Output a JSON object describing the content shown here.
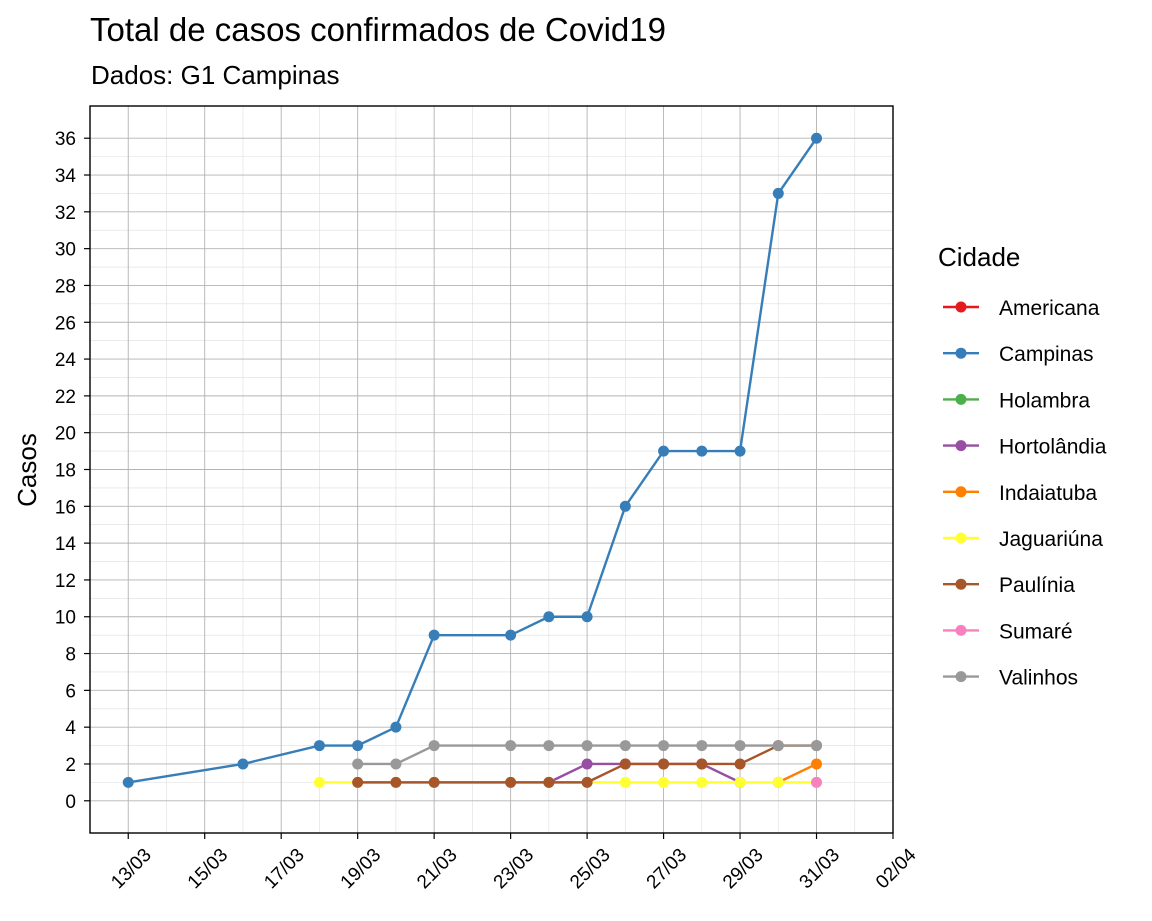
{
  "chart_data": {
    "type": "line",
    "title": "Total de casos confirmados de Covid19",
    "subtitle": "Dados: G1 Campinas",
    "xlabel": "",
    "ylabel": "Casos",
    "x_tick_labels": [
      "13/03",
      "15/03",
      "17/03",
      "19/03",
      "21/03",
      "23/03",
      "25/03",
      "27/03",
      "29/03",
      "31/03",
      "02/04"
    ],
    "y_ticks": [
      0,
      2,
      4,
      6,
      8,
      10,
      12,
      14,
      16,
      18,
      20,
      22,
      24,
      26,
      28,
      30,
      32,
      34,
      36
    ],
    "xlim": [
      "2020-03-12",
      "2020-04-02"
    ],
    "ylim": [
      -1.75,
      37.75
    ],
    "grid": true,
    "legend_title": "Cidade",
    "legend_position": "right",
    "series": [
      {
        "name": "Americana",
        "color": "#E41A1C",
        "points": []
      },
      {
        "name": "Campinas",
        "color": "#377EB8",
        "points": [
          [
            "13/03",
            1
          ],
          [
            "16/03",
            2
          ],
          [
            "18/03",
            3
          ],
          [
            "19/03",
            3
          ],
          [
            "20/03",
            4
          ],
          [
            "21/03",
            9
          ],
          [
            "23/03",
            9
          ],
          [
            "24/03",
            10
          ],
          [
            "25/03",
            10
          ],
          [
            "26/03",
            16
          ],
          [
            "27/03",
            19
          ],
          [
            "28/03",
            19
          ],
          [
            "29/03",
            19
          ],
          [
            "30/03",
            33
          ],
          [
            "31/03",
            36
          ]
        ]
      },
      {
        "name": "Holambra",
        "color": "#4DAF4A",
        "points": []
      },
      {
        "name": "Hortolândia",
        "color": "#984EA3",
        "points": [
          [
            "24/03",
            1
          ],
          [
            "25/03",
            2
          ],
          [
            "26/03",
            2
          ],
          [
            "27/03",
            2
          ],
          [
            "28/03",
            2
          ],
          [
            "29/03",
            1
          ]
        ]
      },
      {
        "name": "Indaiatuba",
        "color": "#FF7F00",
        "points": [
          [
            "30/03",
            1
          ],
          [
            "31/03",
            2
          ]
        ]
      },
      {
        "name": "Jaguariúna",
        "color": "#FFFF33",
        "points": [
          [
            "18/03",
            1
          ],
          [
            "19/03",
            1
          ],
          [
            "20/03",
            1
          ],
          [
            "21/03",
            1
          ],
          [
            "23/03",
            1
          ],
          [
            "24/03",
            1
          ],
          [
            "25/03",
            1
          ],
          [
            "26/03",
            1
          ],
          [
            "27/03",
            1
          ],
          [
            "28/03",
            1
          ],
          [
            "29/03",
            1
          ],
          [
            "30/03",
            1
          ],
          [
            "31/03",
            1
          ]
        ]
      },
      {
        "name": "Paulínia",
        "color": "#A65628",
        "points": [
          [
            "19/03",
            1
          ],
          [
            "20/03",
            1
          ],
          [
            "21/03",
            1
          ],
          [
            "23/03",
            1
          ],
          [
            "24/03",
            1
          ],
          [
            "25/03",
            1
          ],
          [
            "26/03",
            2
          ],
          [
            "27/03",
            2
          ],
          [
            "28/03",
            2
          ],
          [
            "29/03",
            2
          ],
          [
            "30/03",
            3
          ],
          [
            "31/03",
            3
          ]
        ]
      },
      {
        "name": "Sumaré",
        "color": "#F781BF",
        "points": [
          [
            "31/03",
            1
          ]
        ]
      },
      {
        "name": "Valinhos",
        "color": "#999999",
        "points": [
          [
            "19/03",
            2
          ],
          [
            "20/03",
            2
          ],
          [
            "21/03",
            3
          ],
          [
            "23/03",
            3
          ],
          [
            "24/03",
            3
          ],
          [
            "25/03",
            3
          ],
          [
            "26/03",
            3
          ],
          [
            "27/03",
            3
          ],
          [
            "28/03",
            3
          ],
          [
            "29/03",
            3
          ],
          [
            "30/03",
            3
          ],
          [
            "31/03",
            3
          ]
        ]
      }
    ]
  }
}
